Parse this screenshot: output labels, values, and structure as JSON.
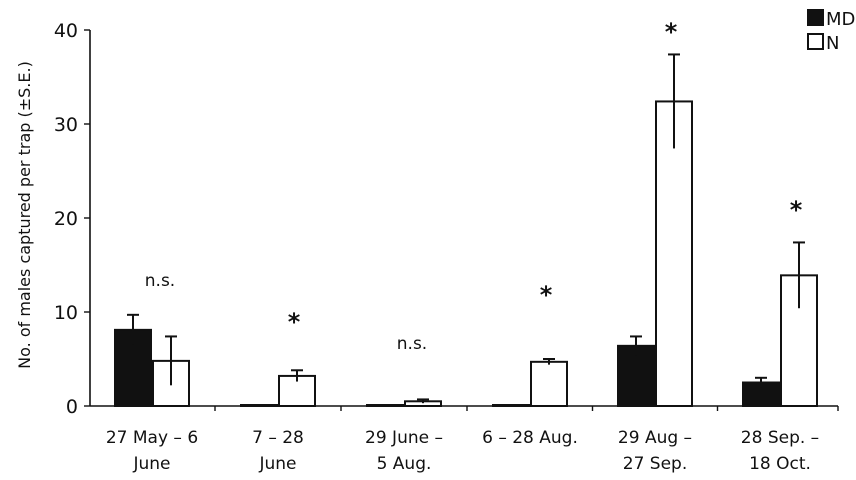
{
  "chart_data": {
    "type": "bar",
    "ylabel": "No. of males captured per trap (±S.E.)",
    "ylim": [
      0,
      40
    ],
    "yticks": [
      0,
      10,
      20,
      30,
      40
    ],
    "categories": [
      [
        "27 May – 6",
        "June"
      ],
      [
        "7 – 28",
        "June"
      ],
      [
        "29 June –",
        "5 Aug."
      ],
      [
        "6 – 28 Aug."
      ],
      [
        "29 Aug –",
        "27 Sep."
      ],
      [
        "28 Sep. –",
        "18 Oct."
      ]
    ],
    "series": [
      {
        "name": "MD",
        "fill": "#111111",
        "values": [
          8.1,
          0.1,
          0.1,
          0.1,
          6.4,
          2.5
        ],
        "errors": [
          1.6,
          0,
          0,
          0,
          1.0,
          0.5
        ]
      },
      {
        "name": "N",
        "fill": "#ffffff",
        "values": [
          4.8,
          3.2,
          0.5,
          4.7,
          32.4,
          13.9
        ],
        "errors": [
          2.6,
          0.6,
          0.2,
          0.3,
          5.0,
          3.5
        ]
      }
    ],
    "significance": [
      "n.s.",
      "*",
      "n.s.",
      "*",
      "*",
      "*"
    ],
    "legend_position": "top-right",
    "grid": false
  }
}
